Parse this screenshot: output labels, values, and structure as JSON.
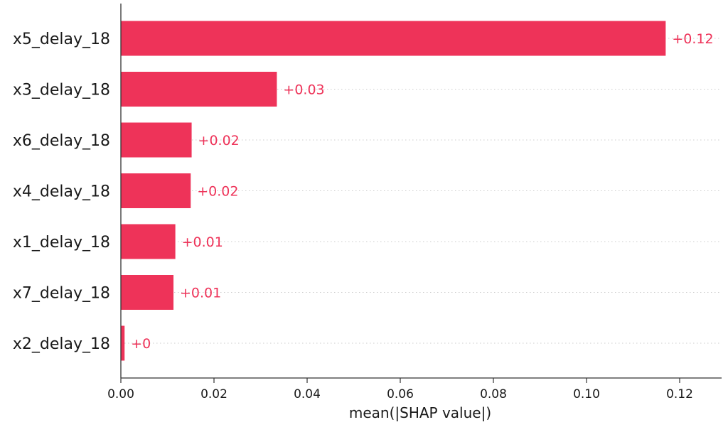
{
  "chart_data": {
    "type": "bar",
    "orientation": "horizontal",
    "categories": [
      "x5_delay_18",
      "x3_delay_18",
      "x6_delay_18",
      "x4_delay_18",
      "x1_delay_18",
      "x7_delay_18",
      "x2_delay_18"
    ],
    "values": [
      0.117,
      0.0335,
      0.0152,
      0.015,
      0.0117,
      0.0113,
      0.0008
    ],
    "value_labels": [
      "+0.12",
      "+0.03",
      "+0.02",
      "+0.02",
      "+0.01",
      "+0.01",
      "+0"
    ],
    "xlabel": "mean(|SHAP value|)",
    "ylabel": "",
    "xlim": [
      0,
      0.129
    ],
    "xticks": [
      0.0,
      0.02,
      0.04,
      0.06,
      0.08,
      0.1,
      0.12
    ],
    "xtick_labels": [
      "0.00",
      "0.02",
      "0.04",
      "0.06",
      "0.08",
      "0.10",
      "0.12"
    ],
    "grid": "horizontal dotted lines at each category",
    "colors": {
      "bar": "#ee3359",
      "value_label": "#ee3359",
      "axis": "#333333",
      "grid": "#cccccc"
    }
  }
}
